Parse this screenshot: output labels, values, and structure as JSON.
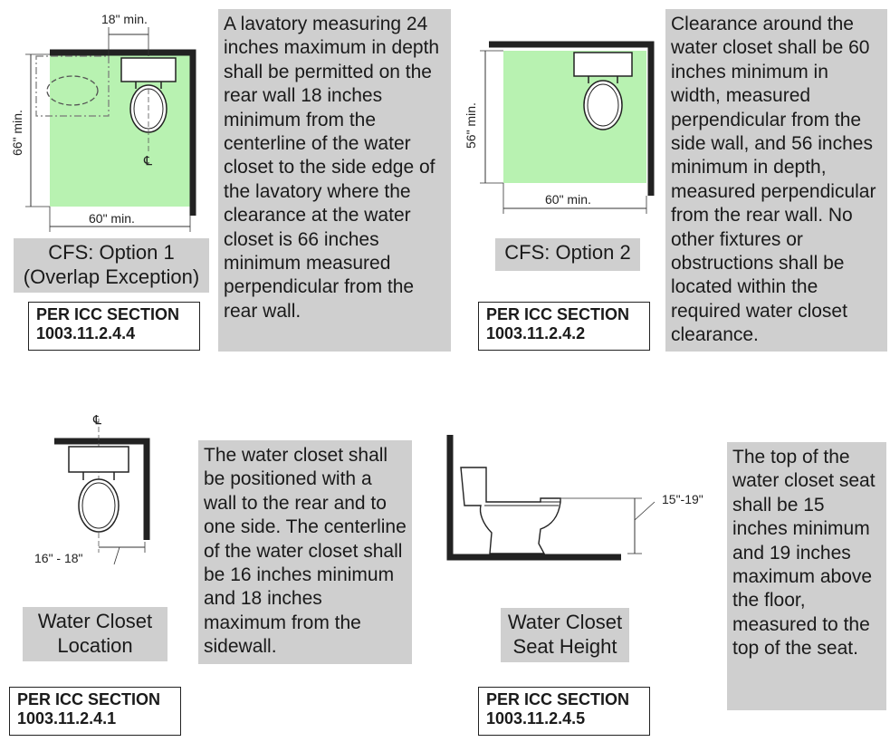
{
  "panels": {
    "option1": {
      "dims": {
        "top": "18\" min.",
        "left": "66\" min.",
        "bottom": "60\" min."
      },
      "caption_line1": "CFS: Option 1",
      "caption_line2": "(Overlap Exception)",
      "section_line1": "PER ICC SECTION",
      "section_line2": "1003.11.2.4.4",
      "description": "A lavatory measuring 24 inches maximum in depth shall be permitted on the rear wall 18 inches minimum from the centerline of the water closet to the side edge of the lavatory where the clearance at the water closet is 66 inches minimum measured perpendicular from the rear wall."
    },
    "option2": {
      "dims": {
        "left": "56\" min.",
        "bottom": "60\" min."
      },
      "caption": "CFS: Option 2",
      "section_line1": "PER ICC SECTION",
      "section_line2": "1003.11.2.4.2",
      "description": "Clearance around the water closet shall be 60 inches minimum in width, measured perpendicular from the side wall, and 56 inches minimum in depth, measured perpendicular from the rear wall. No other fixtures or obstructions shall be located within the required water closet clearance."
    },
    "location": {
      "dims": {
        "bottom": "16\" - 18\""
      },
      "caption_line1": "Water Closet",
      "caption_line2": "Location",
      "section_line1": "PER ICC SECTION",
      "section_line2": "1003.11.2.4.1",
      "description": "The water closet shall be positioned with a wall to the rear and to one side. The centerline of the water closet shall be 16 inches minimum and 18 inches maximum from the sidewall."
    },
    "height": {
      "dims": {
        "right": "15\"-19\""
      },
      "caption_line1": "Water Closet",
      "caption_line2": "Seat Height",
      "section_line1": "PER ICC SECTION",
      "section_line2": "1003.11.2.4.5",
      "description": "The top of the water closet seat shall be 15 inches minimum and 19 inches maximum above the floor, measured to the top of the seat."
    }
  },
  "symbols": {
    "centerline": "℄"
  },
  "colors": {
    "clearance_fill": "#b8f2b1",
    "wall": "#222222",
    "label_bg": "#cfcfcf"
  }
}
